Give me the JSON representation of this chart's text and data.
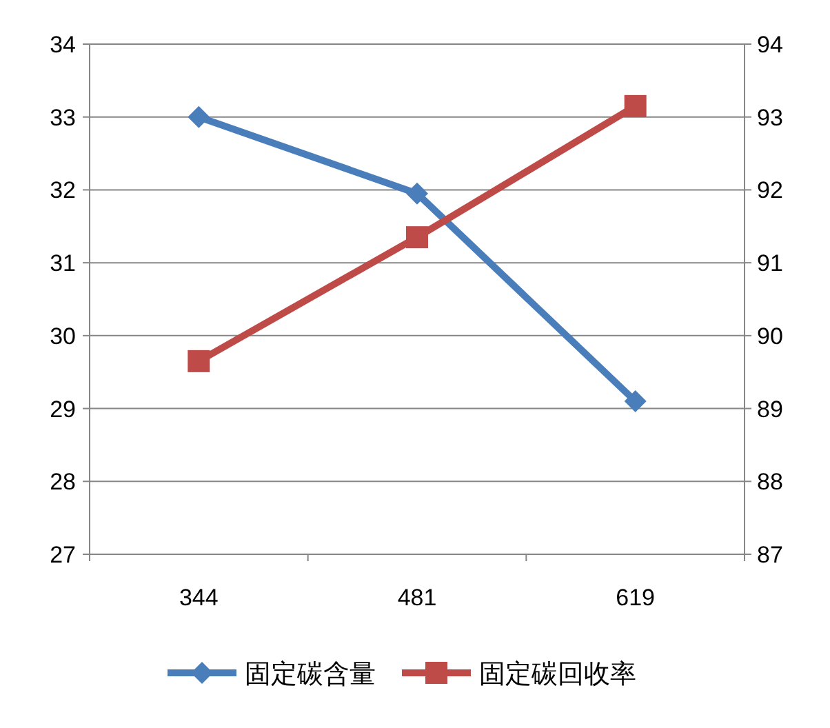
{
  "chart_data": {
    "type": "line",
    "categories": [
      "344",
      "481",
      "619"
    ],
    "series": [
      {
        "name": "固定碳含量",
        "color": "#4a7ebb",
        "values": [
          33.0,
          31.95,
          29.1
        ],
        "marker": "diamond"
      },
      {
        "name": "固定碳回收率",
        "color": "#be4b48",
        "values": [
          89.65,
          91.35,
          93.15
        ],
        "marker": "square",
        "axis": "y2"
      }
    ],
    "ylim": [
      27,
      34
    ],
    "yticks": [
      27,
      28,
      29,
      30,
      31,
      32,
      33,
      34
    ],
    "y2lim": [
      87,
      94
    ],
    "y2ticks": [
      87,
      88,
      89,
      90,
      91,
      92,
      93,
      94
    ],
    "grid": "y",
    "legend": "bottom"
  }
}
